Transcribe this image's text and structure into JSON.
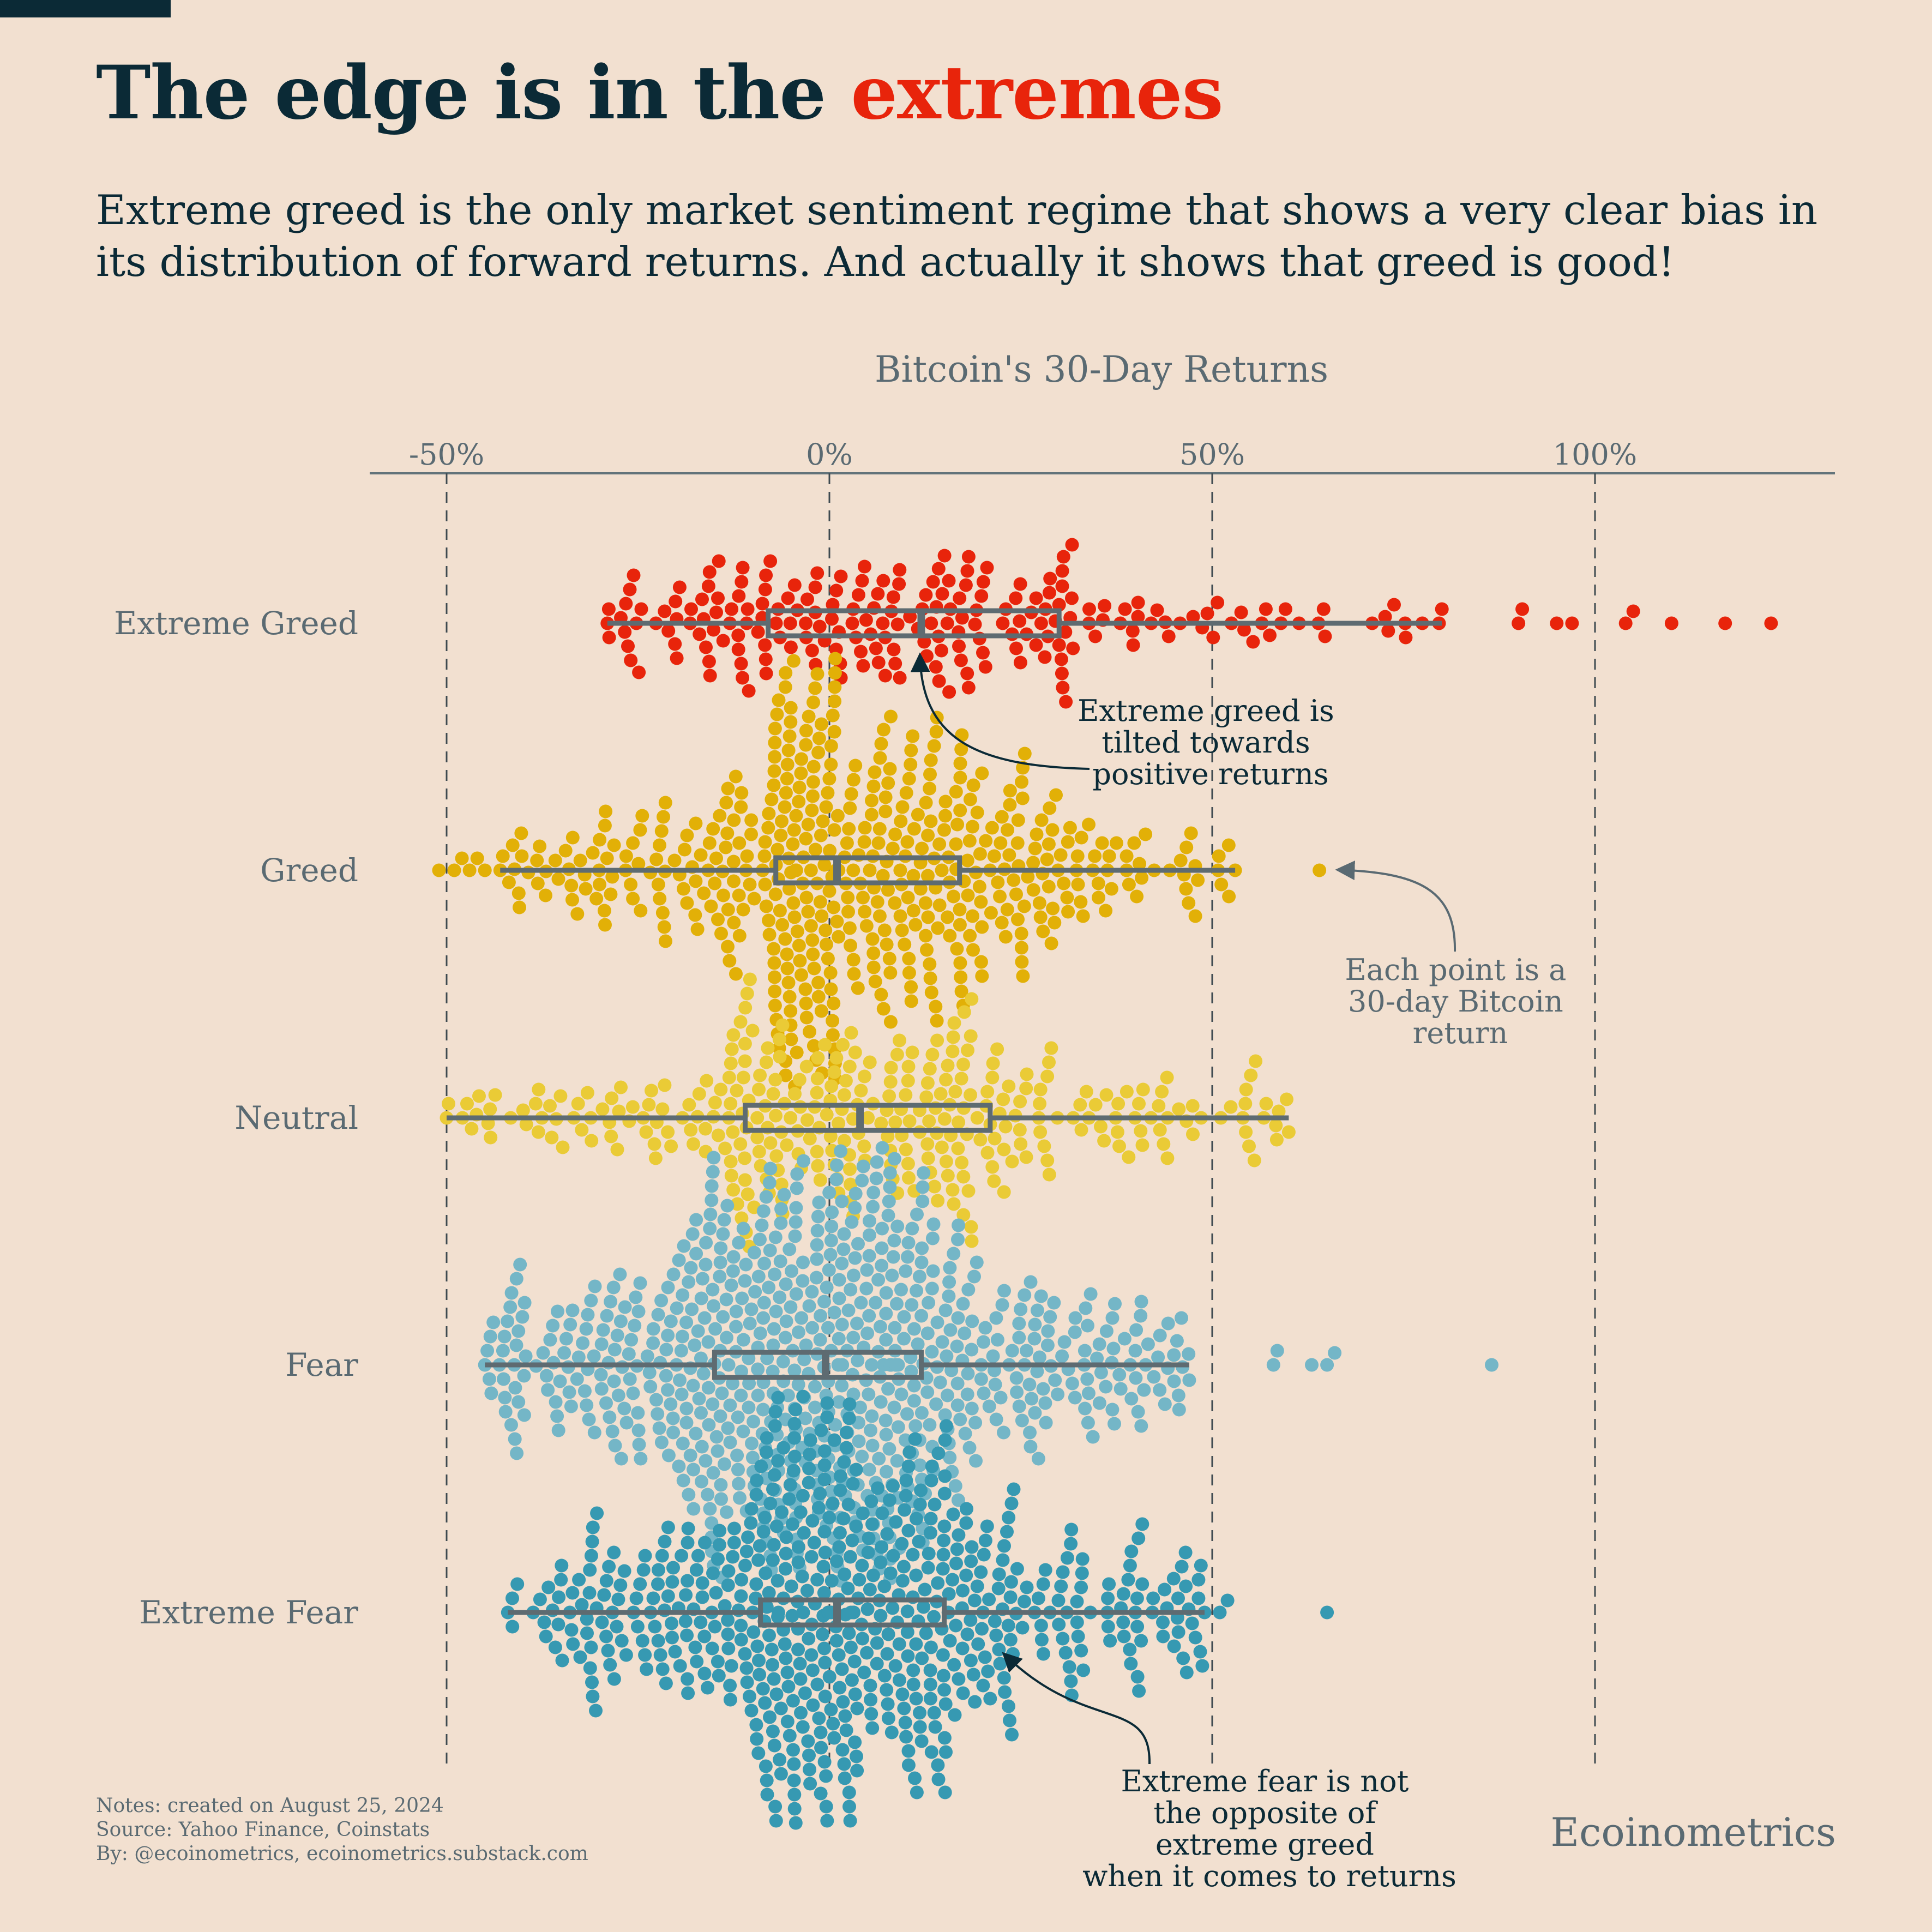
{
  "title": {
    "main": "The edge is in the",
    "accent": "extremes"
  },
  "subtitle": "Extreme greed is the only market sentiment regime that shows a very clear bias in its distribution of forward returns. And actually it shows that greed is good!",
  "colors": {
    "background": "#F2E0D0",
    "text_dark": "#0B2A36",
    "accent": "#E8240B",
    "muted": "#5A6A72",
    "box": "#5E6B71",
    "axis": "#62737A"
  },
  "chart_data": {
    "type": "beeswarm with box plots",
    "xlabel": "Bitcoin's 30-Day Returns",
    "x_ticks": [
      -50,
      0,
      50,
      100
    ],
    "x_tick_labels": [
      "-50%",
      "0%",
      "50%",
      "100%"
    ],
    "xlim": [
      -60,
      131
    ],
    "categories": [
      "Extreme Greed",
      "Greed",
      "Neutral",
      "Fear",
      "Extreme Fear"
    ],
    "series": [
      {
        "name": "Extreme Greed",
        "color": "#E8240B",
        "whisker_low": -29,
        "q1": -8,
        "median": 12,
        "q3": 30,
        "whisker_high": 80,
        "outliers": [
          90,
          90.5,
          95,
          97,
          104,
          105,
          110,
          117,
          123
        ]
      },
      {
        "name": "Greed",
        "color": "#E2B007",
        "whisker_low": -43,
        "q1": -7,
        "median": 1,
        "q3": 17,
        "whisker_high": 53,
        "outliers": [
          -51,
          -49,
          -48,
          -47,
          -46,
          -45,
          64
        ]
      },
      {
        "name": "Neutral",
        "color": "#EACB36",
        "whisker_low": -50,
        "q1": -11,
        "median": 4,
        "q3": 21,
        "whisker_high": 60,
        "outliers": []
      },
      {
        "name": "Fear",
        "color": "#74B6C7",
        "whisker_low": -45,
        "q1": -15,
        "median": -0.5,
        "q3": 12,
        "whisker_high": 47,
        "outliers": [
          58,
          58.5,
          63,
          65,
          66,
          86.5
        ]
      },
      {
        "name": "Extreme Fear",
        "color": "#3699B2",
        "whisker_low": -42,
        "q1": -9,
        "median": 1,
        "q3": 15,
        "whisker_high": 49,
        "outliers": [
          51,
          52,
          65
        ]
      }
    ],
    "annotations": [
      {
        "text": [
          "Extreme greed is",
          "tilted towards",
          "positive returns"
        ]
      },
      {
        "text": [
          "Each point is a",
          "30-day Bitcoin",
          "return"
        ]
      },
      {
        "text": [
          "Extreme fear is not",
          "the opposite of",
          "extreme greed",
          "when it comes to returns"
        ]
      }
    ]
  },
  "footer": {
    "line1": "Notes: created on August 25, 2024",
    "line2": "Source: Yahoo Finance, Coinstats",
    "line3": "By: @ecoinometrics, ecoinometrics.substack.com"
  },
  "brand": "Ecoinometrics"
}
